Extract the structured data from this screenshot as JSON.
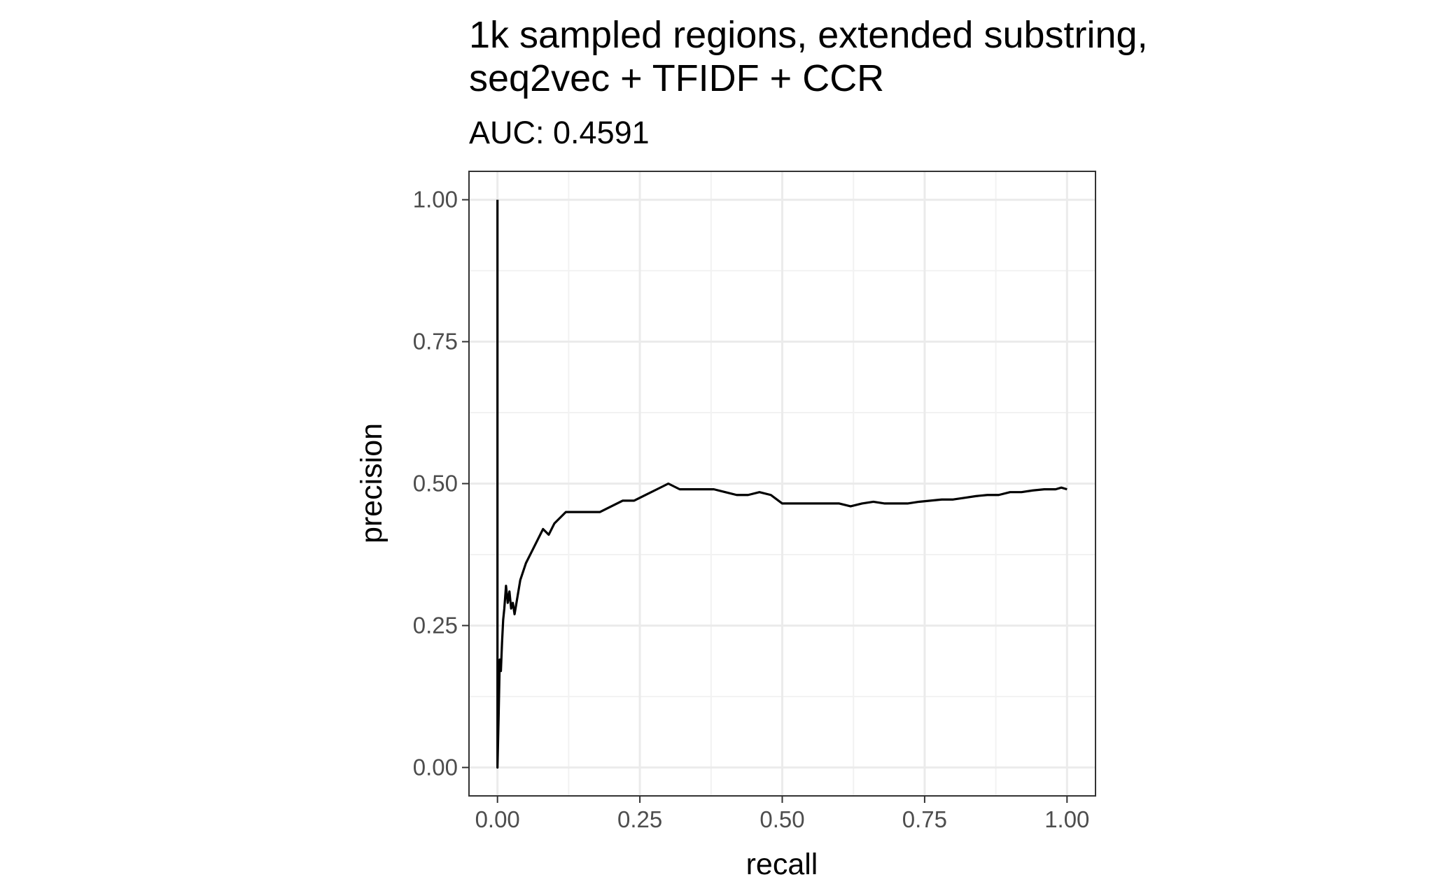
{
  "chart_data": {
    "type": "line",
    "title_lines": [
      "1k sampled regions, extended substring,",
      "seq2vec + TFIDF + CCR"
    ],
    "subtitle": "AUC: 0.4591",
    "xlabel": "recall",
    "ylabel": "precision",
    "xlim": [
      -0.05,
      1.05
    ],
    "ylim": [
      -0.05,
      1.05
    ],
    "x_ticks": [
      0.0,
      0.25,
      0.5,
      0.75,
      1.0
    ],
    "x_tick_labels": [
      "0.00",
      "0.25",
      "0.50",
      "0.75",
      "1.00"
    ],
    "y_ticks": [
      0.0,
      0.25,
      0.5,
      0.75,
      1.0
    ],
    "y_tick_labels": [
      "0.00",
      "0.25",
      "0.50",
      "0.75",
      "1.00"
    ],
    "grid": true,
    "theme": "black-and-white",
    "line_color": "#000000",
    "series": [
      {
        "x": [
          0.0,
          0.0,
          0.002,
          0.004,
          0.006,
          0.008,
          0.01,
          0.012,
          0.015,
          0.018,
          0.021,
          0.024,
          0.027,
          0.03,
          0.04,
          0.05,
          0.06,
          0.07,
          0.08,
          0.09,
          0.1,
          0.11,
          0.12,
          0.14,
          0.16,
          0.18,
          0.2,
          0.22,
          0.24,
          0.26,
          0.28,
          0.3,
          0.32,
          0.34,
          0.36,
          0.38,
          0.4,
          0.42,
          0.44,
          0.46,
          0.48,
          0.5,
          0.52,
          0.54,
          0.56,
          0.58,
          0.6,
          0.62,
          0.64,
          0.66,
          0.68,
          0.7,
          0.72,
          0.74,
          0.76,
          0.78,
          0.8,
          0.82,
          0.84,
          0.86,
          0.88,
          0.9,
          0.92,
          0.94,
          0.96,
          0.98,
          0.99,
          1.0
        ],
        "y": [
          1.0,
          0.0,
          0.09,
          0.19,
          0.17,
          0.22,
          0.26,
          0.28,
          0.32,
          0.29,
          0.31,
          0.28,
          0.29,
          0.27,
          0.33,
          0.36,
          0.38,
          0.4,
          0.42,
          0.41,
          0.43,
          0.44,
          0.45,
          0.45,
          0.45,
          0.45,
          0.46,
          0.47,
          0.47,
          0.48,
          0.49,
          0.5,
          0.49,
          0.49,
          0.49,
          0.49,
          0.485,
          0.48,
          0.48,
          0.485,
          0.48,
          0.465,
          0.465,
          0.465,
          0.465,
          0.465,
          0.465,
          0.46,
          0.465,
          0.468,
          0.465,
          0.465,
          0.465,
          0.468,
          0.47,
          0.472,
          0.472,
          0.475,
          0.478,
          0.48,
          0.48,
          0.485,
          0.485,
          0.488,
          0.49,
          0.49,
          0.493,
          0.49
        ]
      }
    ]
  }
}
